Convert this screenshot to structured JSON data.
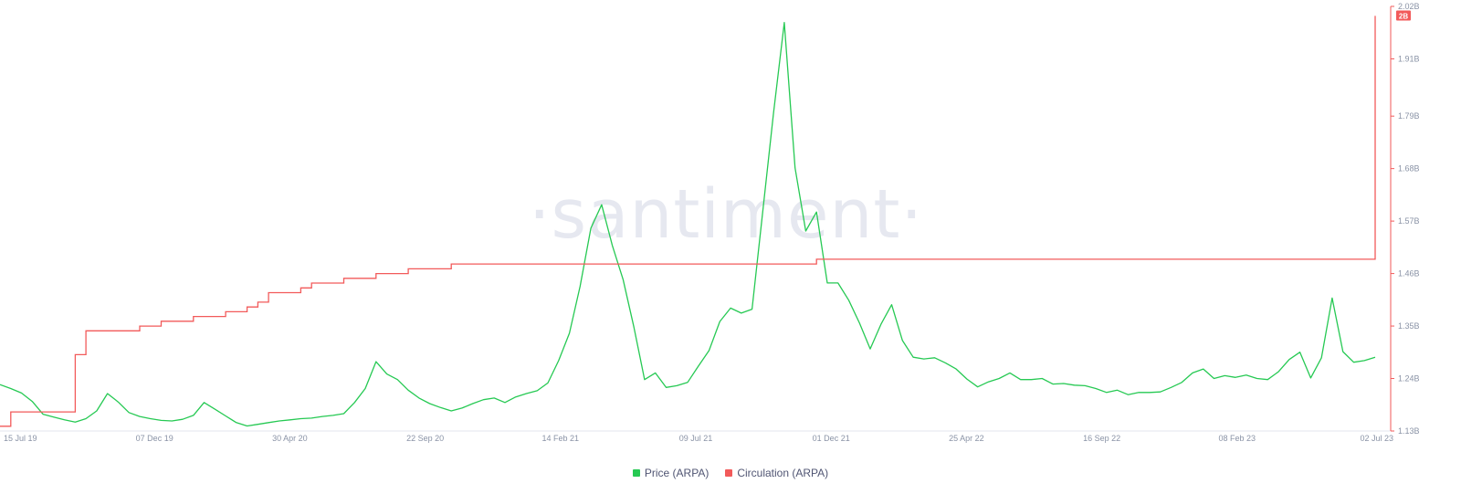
{
  "watermark": "·santiment·",
  "chart_data": {
    "type": "line",
    "x_ticks": [
      "15 Jul 19",
      "07 Dec 19",
      "30 Apr 20",
      "22 Sep 20",
      "14 Feb 21",
      "09 Jul 21",
      "01 Dec 21",
      "25 Apr 22",
      "16 Sep 22",
      "08 Feb 23",
      "02 Jul 23"
    ],
    "y_right_ticks": [
      "2.02B",
      "1.91B",
      "1.79B",
      "1.68B",
      "1.57B",
      "1.46B",
      "1.35B",
      "1.24B",
      "1.13B"
    ],
    "y_right_range": [
      1.13,
      2.02
    ],
    "y_right_unit": "B",
    "current_value_badge": "2B",
    "legend_position": "bottom-center",
    "grid": false,
    "series": [
      {
        "name": "Price (ARPA)",
        "color": "#26c953",
        "axis": "hidden",
        "values": [
          0.0243,
          0.0236,
          0.0228,
          0.0213,
          0.019,
          0.0185,
          0.018,
          0.0176,
          0.0182,
          0.0196,
          0.0227,
          0.0212,
          0.0193,
          0.0186,
          0.0182,
          0.0179,
          0.0178,
          0.0181,
          0.0188,
          0.0211,
          0.0199,
          0.0187,
          0.0175,
          0.0169,
          0.0172,
          0.0175,
          0.0178,
          0.018,
          0.0182,
          0.0183,
          0.0186,
          0.0188,
          0.0191,
          0.0211,
          0.0236,
          0.0284,
          0.0262,
          0.0252,
          0.0233,
          0.0219,
          0.0209,
          0.0202,
          0.0196,
          0.0201,
          0.0209,
          0.0216,
          0.0219,
          0.0211,
          0.0221,
          0.0227,
          0.0232,
          0.0246,
          0.0286,
          0.0335,
          0.0419,
          0.0523,
          0.0565,
          0.0492,
          0.0431,
          0.0346,
          0.0252,
          0.0264,
          0.0238,
          0.0241,
          0.0247,
          0.0276,
          0.0304,
          0.0356,
          0.038,
          0.0371,
          0.0378,
          0.0554,
          0.0729,
          0.0891,
          0.0631,
          0.0518,
          0.0552,
          0.0425,
          0.0425,
          0.0394,
          0.0353,
          0.0307,
          0.0351,
          0.0386,
          0.0322,
          0.0292,
          0.0289,
          0.0291,
          0.0282,
          0.0271,
          0.0253,
          0.0239,
          0.0248,
          0.0254,
          0.0264,
          0.0252,
          0.0252,
          0.0254,
          0.0244,
          0.0245,
          0.0242,
          0.0241,
          0.0236,
          0.0229,
          0.0233,
          0.0225,
          0.0229,
          0.0229,
          0.023,
          0.0238,
          0.0247,
          0.0264,
          0.0271,
          0.0254,
          0.0259,
          0.0256,
          0.026,
          0.0254,
          0.0252,
          0.0266,
          0.0288,
          0.0301,
          0.0255,
          0.0291,
          0.0398,
          0.0302,
          0.0283,
          0.0286,
          0.0292
        ]
      },
      {
        "name": "Circulation (ARPA)",
        "color": "#f25a5a",
        "axis": "right",
        "unit": "B",
        "values": [
          1.14,
          1.17,
          1.17,
          1.17,
          1.17,
          1.17,
          1.17,
          1.29,
          1.34,
          1.34,
          1.34,
          1.34,
          1.34,
          1.35,
          1.35,
          1.36,
          1.36,
          1.36,
          1.37,
          1.37,
          1.37,
          1.38,
          1.38,
          1.39,
          1.4,
          1.42,
          1.42,
          1.42,
          1.43,
          1.44,
          1.44,
          1.44,
          1.45,
          1.45,
          1.45,
          1.46,
          1.46,
          1.46,
          1.47,
          1.47,
          1.47,
          1.47,
          1.48,
          1.48,
          1.48,
          1.48,
          1.48,
          1.48,
          1.48,
          1.48,
          1.48,
          1.48,
          1.48,
          1.48,
          1.48,
          1.48,
          1.48,
          1.48,
          1.48,
          1.48,
          1.48,
          1.48,
          1.48,
          1.48,
          1.48,
          1.48,
          1.48,
          1.48,
          1.48,
          1.48,
          1.48,
          1.48,
          1.48,
          1.48,
          1.48,
          1.48,
          1.49,
          1.49,
          1.49,
          1.49,
          1.49,
          1.49,
          1.49,
          1.49,
          1.49,
          1.49,
          1.49,
          1.49,
          1.49,
          1.49,
          1.49,
          1.49,
          1.49,
          1.49,
          1.49,
          1.49,
          1.49,
          1.49,
          1.49,
          1.49,
          1.49,
          1.49,
          1.49,
          1.49,
          1.49,
          1.49,
          1.49,
          1.49,
          1.49,
          1.49,
          1.49,
          1.49,
          1.49,
          1.49,
          1.49,
          1.49,
          1.49,
          1.49,
          1.49,
          1.49,
          1.49,
          1.49,
          1.49,
          1.49,
          1.49,
          1.49,
          1.49,
          1.49,
          2.0
        ]
      }
    ]
  }
}
